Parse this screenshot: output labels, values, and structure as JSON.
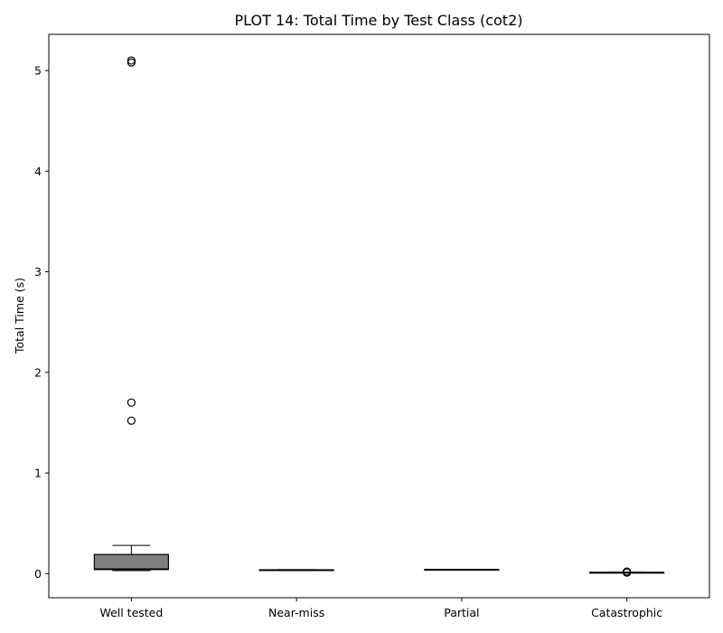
{
  "chart_data": {
    "type": "box",
    "title": "PLOT 14: Total Time by Test Class (cot2)",
    "xlabel": "",
    "ylabel": "Total Time (s)",
    "ylim": [
      -0.24,
      5.36
    ],
    "yticks": [
      0,
      1,
      2,
      3,
      4,
      5
    ],
    "categories": [
      "Well tested",
      "Near-miss",
      "Partial",
      "Catastrophic"
    ],
    "box_color": "#808080",
    "boxes": [
      {
        "category": "Well tested",
        "whisker_low": 0.03,
        "q1": 0.04,
        "median": 0.045,
        "q3": 0.19,
        "whisker_high": 0.28,
        "outliers": [
          1.52,
          1.7,
          5.08,
          5.1
        ]
      },
      {
        "category": "Near-miss",
        "whisker_low": 0.03,
        "q1": 0.032,
        "median": 0.035,
        "q3": 0.038,
        "whisker_high": 0.04,
        "outliers": []
      },
      {
        "category": "Partial",
        "whisker_low": 0.038,
        "q1": 0.039,
        "median": 0.04,
        "q3": 0.041,
        "whisker_high": 0.042,
        "outliers": []
      },
      {
        "category": "Catastrophic",
        "whisker_low": 0.008,
        "q1": 0.009,
        "median": 0.01,
        "q3": 0.012,
        "whisker_high": 0.014,
        "outliers": [
          0.01,
          0.015,
          0.02
        ]
      }
    ]
  }
}
